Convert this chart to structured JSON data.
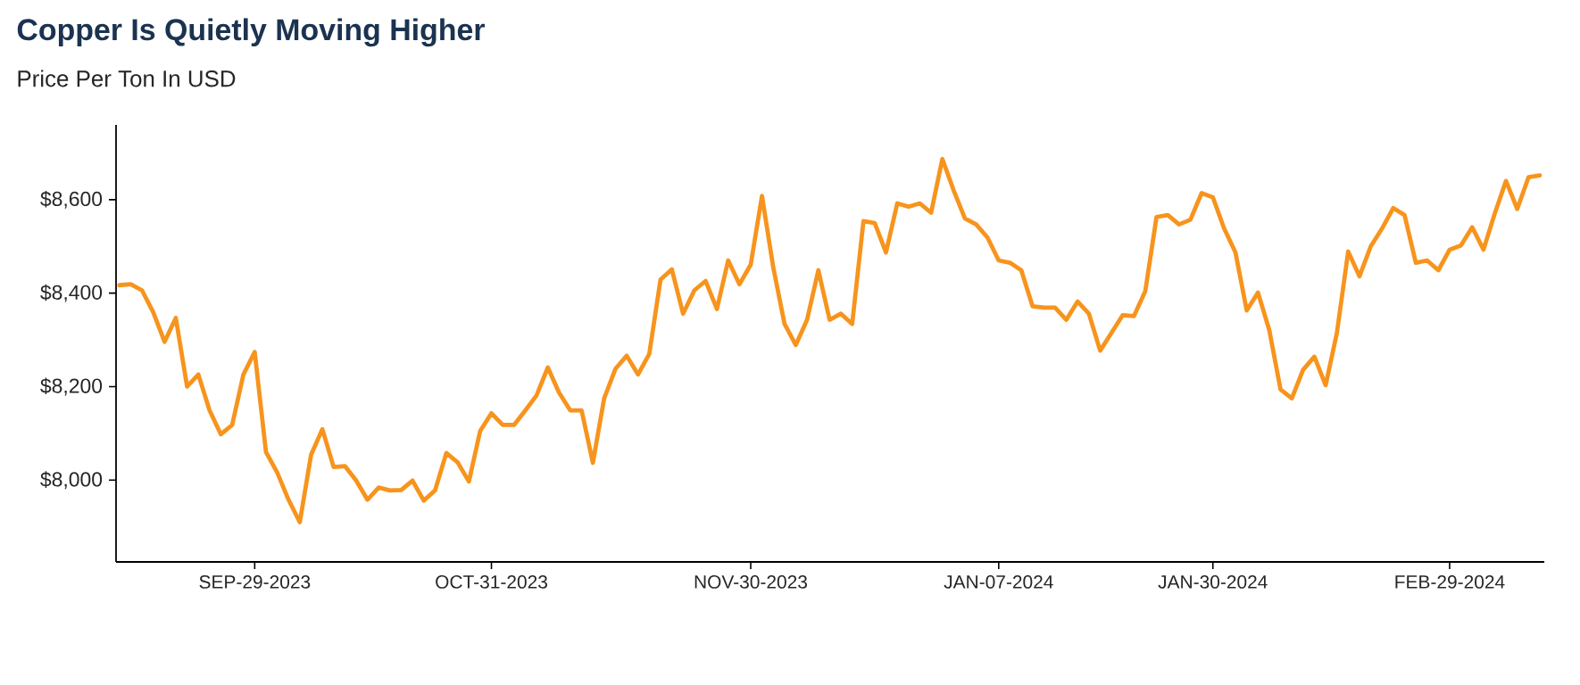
{
  "chart_data": {
    "type": "line",
    "title": "Copper Is Quietly Moving Higher",
    "subtitle": "Price Per Ton In USD",
    "categories": [
      null,
      null,
      null,
      null,
      null,
      null,
      null,
      null,
      null,
      null,
      null,
      null,
      "SEP-29-2023",
      null,
      null,
      null,
      null,
      null,
      null,
      null,
      null,
      null,
      null,
      null,
      null,
      null,
      null,
      null,
      null,
      null,
      null,
      null,
      null,
      "OCT-31-2023",
      null,
      null,
      null,
      null,
      null,
      null,
      null,
      null,
      null,
      null,
      null,
      null,
      null,
      null,
      null,
      null,
      null,
      null,
      null,
      null,
      null,
      null,
      "NOV-30-2023",
      null,
      null,
      null,
      null,
      null,
      null,
      null,
      null,
      null,
      null,
      null,
      null,
      null,
      null,
      null,
      null,
      null,
      null,
      null,
      null,
      null,
      "JAN-07-2024",
      null,
      null,
      null,
      null,
      null,
      null,
      null,
      null,
      null,
      null,
      null,
      null,
      null,
      null,
      null,
      null,
      null,
      null,
      "JAN-30-2024",
      null,
      null,
      null,
      null,
      null,
      null,
      null,
      null,
      null,
      null,
      null,
      null,
      null,
      null,
      null,
      null,
      null,
      null,
      null,
      null,
      "FEB-29-2024",
      null,
      null,
      null,
      null,
      null,
      null,
      null,
      null
    ],
    "color": "#f7941d",
    "values": [
      8417,
      8419,
      8406,
      8359,
      8296,
      8347,
      8200,
      8226,
      8149,
      8098,
      8118,
      8226,
      8274,
      8060,
      8016,
      7958,
      7910,
      8054,
      8109,
      8028,
      8030,
      7999,
      7958,
      7984,
      7978,
      7979,
      7999,
      7956,
      7978,
      8058,
      8038,
      7997,
      8105,
      8143,
      8118,
      8118,
      8149,
      8181,
      8241,
      8187,
      8149,
      8149,
      8037,
      8175,
      8238,
      8266,
      8226,
      8270,
      8429,
      8451,
      8356,
      8406,
      8426,
      8366,
      8470,
      8419,
      8461,
      8608,
      8455,
      8334,
      8289,
      8343,
      8449,
      8343,
      8356,
      8334,
      8554,
      8550,
      8487,
      8592,
      8585,
      8592,
      8572,
      8687,
      8620,
      8560,
      8547,
      8519,
      8470,
      8465,
      8449,
      8372,
      8369,
      8369,
      8343,
      8382,
      8356,
      8277,
      8315,
      8353,
      8351,
      8404,
      8563,
      8567,
      8547,
      8557,
      8614,
      8605,
      8538,
      8487,
      8363,
      8401,
      8321,
      8194,
      8175,
      8236,
      8264,
      8203,
      8315,
      8489,
      8436,
      8500,
      8538,
      8582,
      8567,
      8465,
      8470,
      8449,
      8493,
      8502,
      8541,
      8493,
      8570,
      8640,
      8580,
      8648,
      8652
    ],
    "ylim": [
      7825,
      8760
    ],
    "yticks": [
      {
        "value": 8000,
        "label": "$8,000"
      },
      {
        "value": 8200,
        "label": "$8,200"
      },
      {
        "value": 8400,
        "label": "$8,400"
      },
      {
        "value": 8600,
        "label": "$8,600"
      }
    ]
  }
}
